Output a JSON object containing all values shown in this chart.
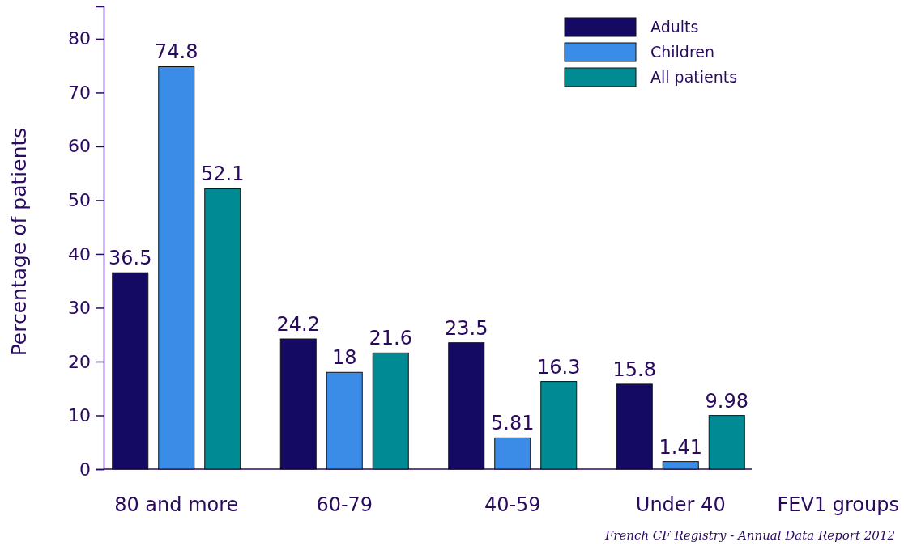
{
  "chart_data": {
    "type": "bar",
    "ylabel": "Percentage of patients",
    "xlabel": "FEV1 groups",
    "categories": [
      "80 and more",
      "60-79",
      "40-59",
      "Under 40"
    ],
    "series": [
      {
        "name": "Adults",
        "color": "#140a64",
        "values": [
          36.5,
          24.2,
          23.5,
          15.8
        ]
      },
      {
        "name": "Children",
        "color": "#3a8ce6",
        "values": [
          74.8,
          18,
          5.81,
          1.41
        ]
      },
      {
        "name": "All patients",
        "color": "#008a94",
        "values": [
          52.1,
          21.6,
          16.3,
          9.98
        ]
      }
    ],
    "ylim": [
      0,
      86
    ],
    "yticks": [
      0,
      10,
      20,
      30,
      40,
      50,
      60,
      70,
      80
    ],
    "data_labels": true,
    "legend": "top right",
    "grid": false,
    "annotations": [
      "French CF Registry - Annual Data Report 2012"
    ]
  }
}
